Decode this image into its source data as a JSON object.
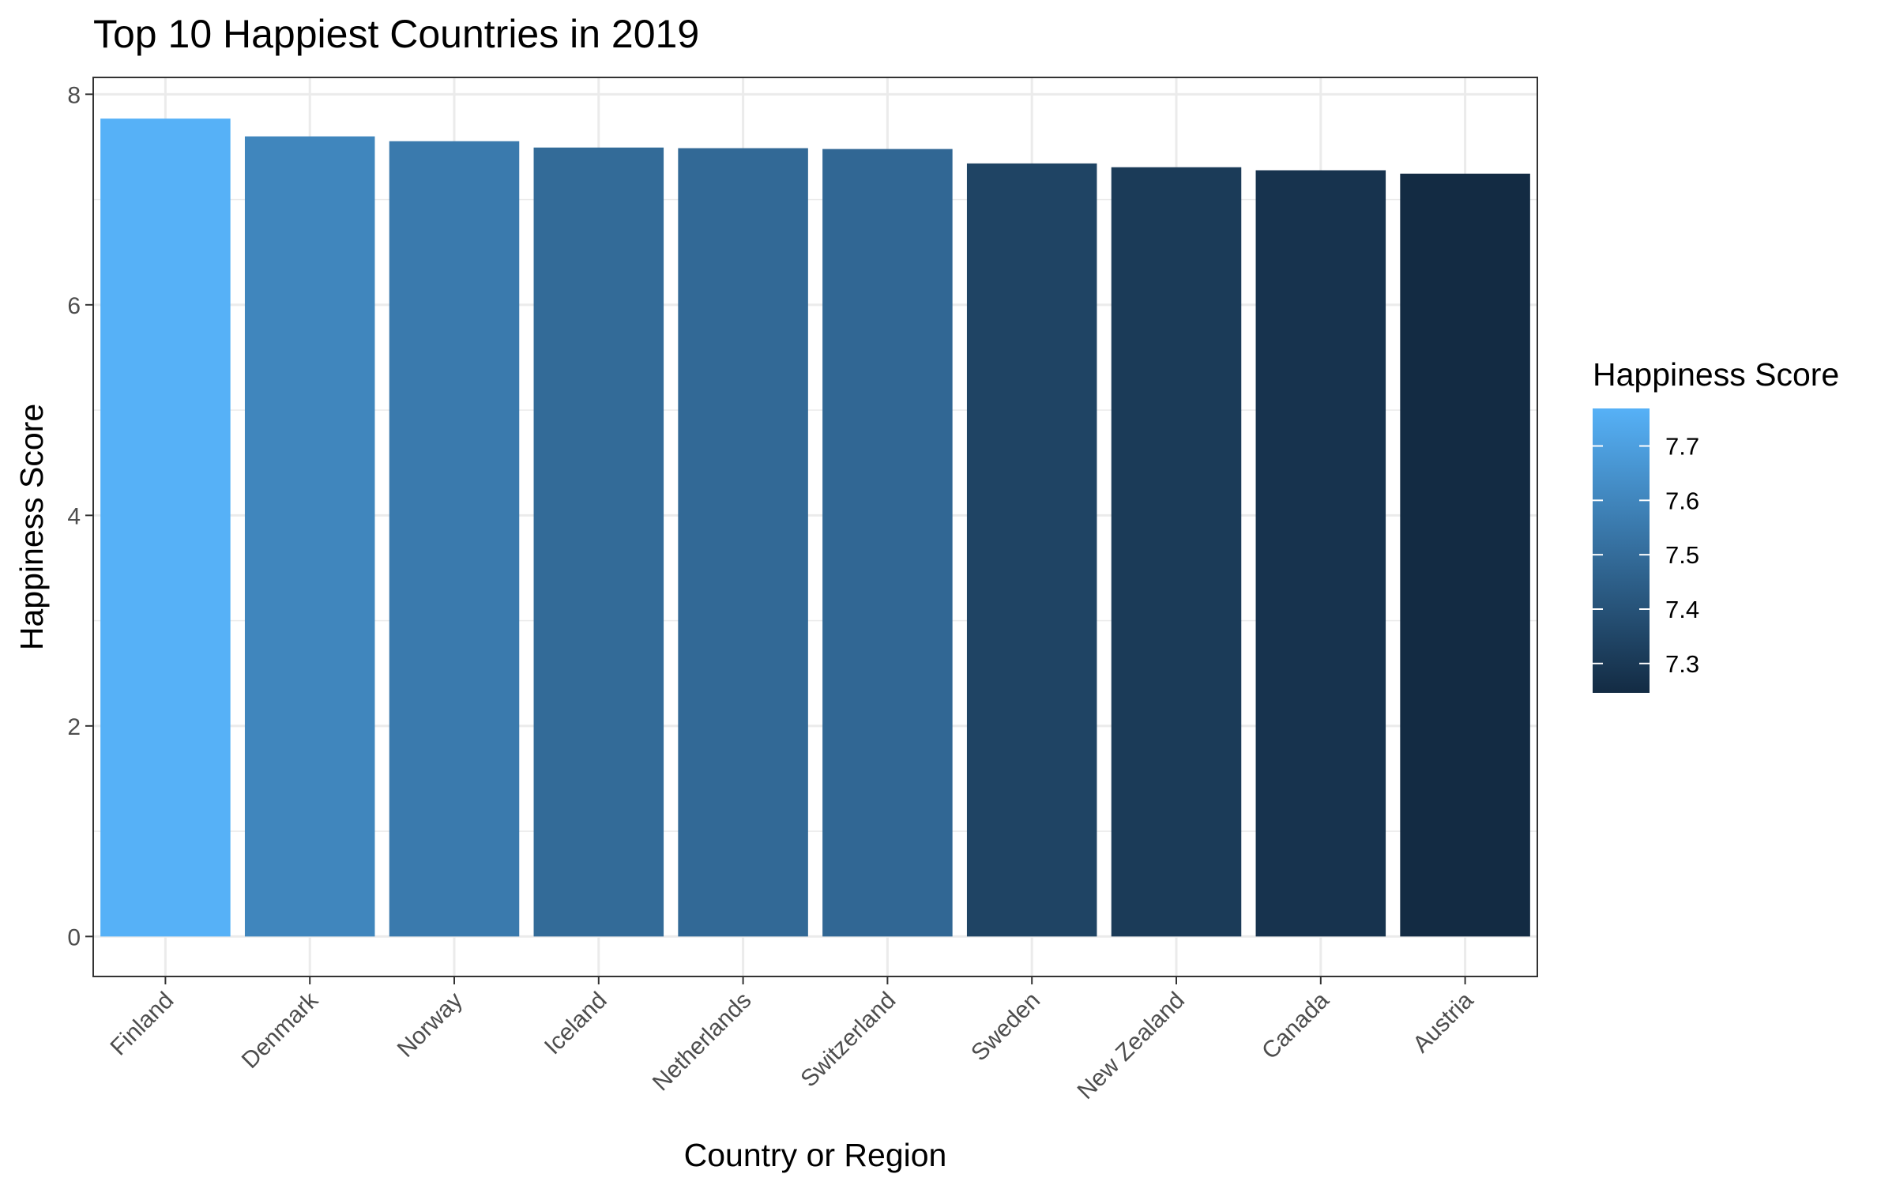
{
  "chart_data": {
    "type": "bar",
    "title": "Top 10 Happiest Countries in 2019",
    "xlabel": "Country or Region",
    "ylabel": "Happiness Score",
    "categories": [
      "Finland",
      "Denmark",
      "Norway",
      "Iceland",
      "Netherlands",
      "Switzerland",
      "Sweden",
      "New Zealand",
      "Canada",
      "Austria"
    ],
    "values": [
      7.769,
      7.6,
      7.554,
      7.494,
      7.488,
      7.48,
      7.343,
      7.307,
      7.278,
      7.246
    ],
    "ylim": [
      -0.38,
      8.16
    ],
    "yticks": [
      0,
      2,
      4,
      6,
      8
    ],
    "grid": true,
    "legend": {
      "title": "Happiness Score",
      "position": "right",
      "ticks": [
        7.7,
        7.6,
        7.5,
        7.4,
        7.3
      ],
      "range": [
        7.246,
        7.769
      ],
      "color_low": "#132B43",
      "color_high": "#56B1F7"
    }
  }
}
